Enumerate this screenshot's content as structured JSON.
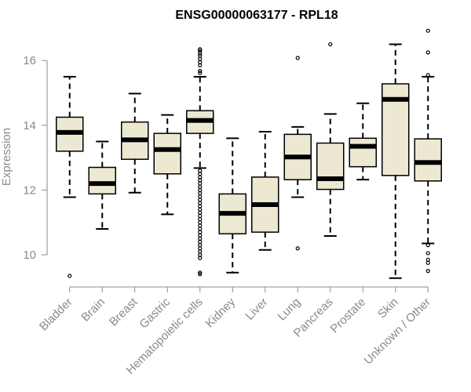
{
  "chart_data": {
    "type": "boxplot",
    "title": "ENSG00000063177 - RPL18",
    "ylabel": "Expression",
    "xlabel": "",
    "ylim": [
      9,
      16.9
    ],
    "yticks": [
      10,
      12,
      14,
      16
    ],
    "box_fill": "#ede8d2",
    "median_color": "#000000",
    "categories": [
      "Bladder",
      "Brain",
      "Breast",
      "Gastric",
      "Hematopoietic cells",
      "Kidney",
      "Liver",
      "Lung",
      "Pancreas",
      "Prostate",
      "Skin",
      "Unknown / Other"
    ],
    "boxes": [
      {
        "q1": 13.2,
        "median": 13.78,
        "q3": 14.25,
        "whisker_low": 11.78,
        "whisker_high": 15.5,
        "outliers": [
          9.35
        ]
      },
      {
        "q1": 11.88,
        "median": 12.2,
        "q3": 12.7,
        "whisker_low": 10.8,
        "whisker_high": 13.5,
        "outliers": []
      },
      {
        "q1": 12.95,
        "median": 13.55,
        "q3": 14.1,
        "whisker_low": 11.92,
        "whisker_high": 14.98,
        "outliers": []
      },
      {
        "q1": 12.5,
        "median": 13.25,
        "q3": 13.75,
        "whisker_low": 11.25,
        "whisker_high": 14.32,
        "outliers": []
      },
      {
        "q1": 13.75,
        "median": 14.15,
        "q3": 14.45,
        "whisker_low": 12.68,
        "whisker_high": 15.5,
        "outliers": [
          15.62,
          15.68,
          15.85,
          15.95,
          16.05,
          16.15,
          16.22,
          16.3,
          16.35,
          12.6,
          12.5,
          12.4,
          12.3,
          12.2,
          12.1,
          12.0,
          11.9,
          11.8,
          11.7,
          11.6,
          11.5,
          11.4,
          11.3,
          11.2,
          11.1,
          11.0,
          10.9,
          10.8,
          10.7,
          10.6,
          10.5,
          10.4,
          10.3,
          10.2,
          10.1,
          10.0,
          9.9,
          9.45,
          9.4
        ]
      },
      {
        "q1": 10.65,
        "median": 11.28,
        "q3": 11.88,
        "whisker_low": 9.45,
        "whisker_high": 13.6,
        "outliers": []
      },
      {
        "q1": 10.7,
        "median": 11.55,
        "q3": 12.4,
        "whisker_low": 10.15,
        "whisker_high": 13.8,
        "outliers": []
      },
      {
        "q1": 12.32,
        "median": 13.02,
        "q3": 13.72,
        "whisker_low": 11.78,
        "whisker_high": 13.95,
        "outliers": [
          16.08,
          10.2
        ]
      },
      {
        "q1": 12.02,
        "median": 12.35,
        "q3": 13.45,
        "whisker_low": 10.58,
        "whisker_high": 14.35,
        "outliers": [
          16.5
        ]
      },
      {
        "q1": 12.72,
        "median": 13.35,
        "q3": 13.6,
        "whisker_low": 12.32,
        "whisker_high": 14.68,
        "outliers": []
      },
      {
        "q1": 12.45,
        "median": 14.8,
        "q3": 15.28,
        "whisker_low": 9.28,
        "whisker_high": 16.5,
        "outliers": []
      },
      {
        "q1": 12.28,
        "median": 12.85,
        "q3": 13.58,
        "whisker_low": 10.35,
        "whisker_high": 15.5,
        "outliers": [
          16.92,
          16.25,
          15.55,
          10.3,
          10.05,
          9.85,
          9.75,
          9.5
        ]
      }
    ]
  }
}
